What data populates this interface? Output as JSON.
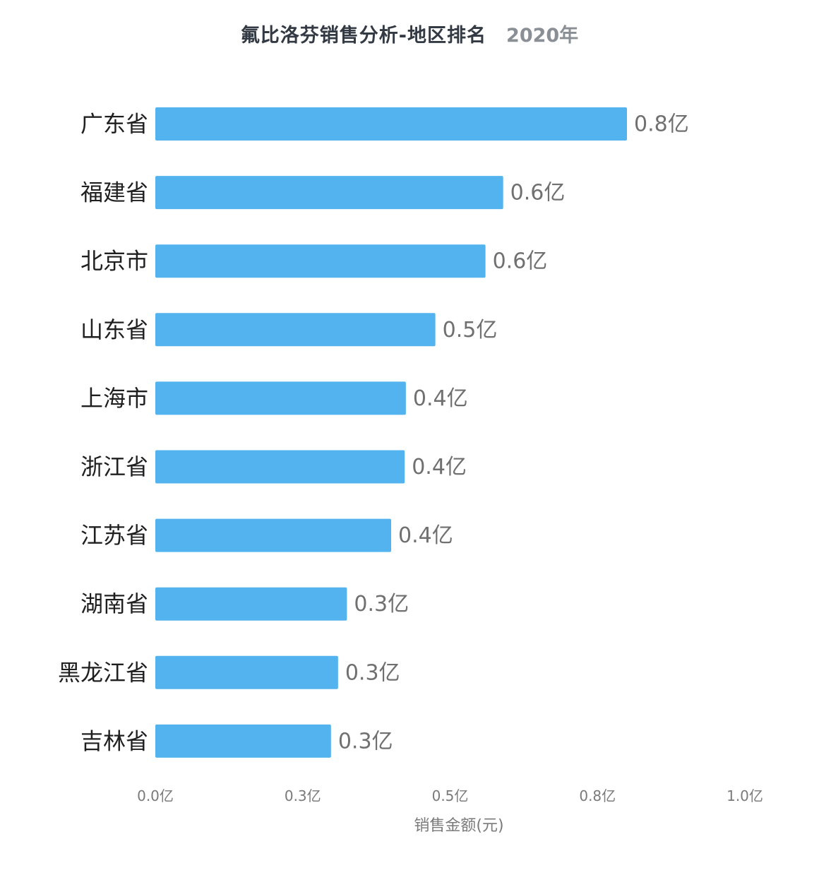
{
  "header": {
    "title": "氟比洛芬销售分析-地区排名",
    "subtitle": "2020年"
  },
  "colors": {
    "bar": "#52b3ee"
  },
  "chart_data": {
    "type": "bar",
    "orientation": "horizontal",
    "title": "氟比洛芬销售分析-地区排名",
    "subtitle": "2020年",
    "xlabel": "销售金额(元)",
    "ylabel": "",
    "unit": "亿",
    "xlim": [
      0,
      1.0
    ],
    "ticks": [
      0,
      0.25,
      0.5,
      0.75,
      1.0
    ],
    "tick_labels": [
      "0.0亿",
      "0.3亿",
      "0.5亿",
      "0.8亿",
      "1.0亿"
    ],
    "grid": false,
    "categories": [
      "广东省",
      "福建省",
      "北京市",
      "山东省",
      "上海市",
      "浙江省",
      "江苏省",
      "湖南省",
      "黑龙江省",
      "吉林省"
    ],
    "values": [
      0.8,
      0.59,
      0.56,
      0.475,
      0.425,
      0.423,
      0.4,
      0.325,
      0.31,
      0.298
    ],
    "value_labels": [
      "0.8亿",
      "0.6亿",
      "0.6亿",
      "0.5亿",
      "0.4亿",
      "0.4亿",
      "0.4亿",
      "0.3亿",
      "0.3亿",
      "0.3亿"
    ]
  }
}
